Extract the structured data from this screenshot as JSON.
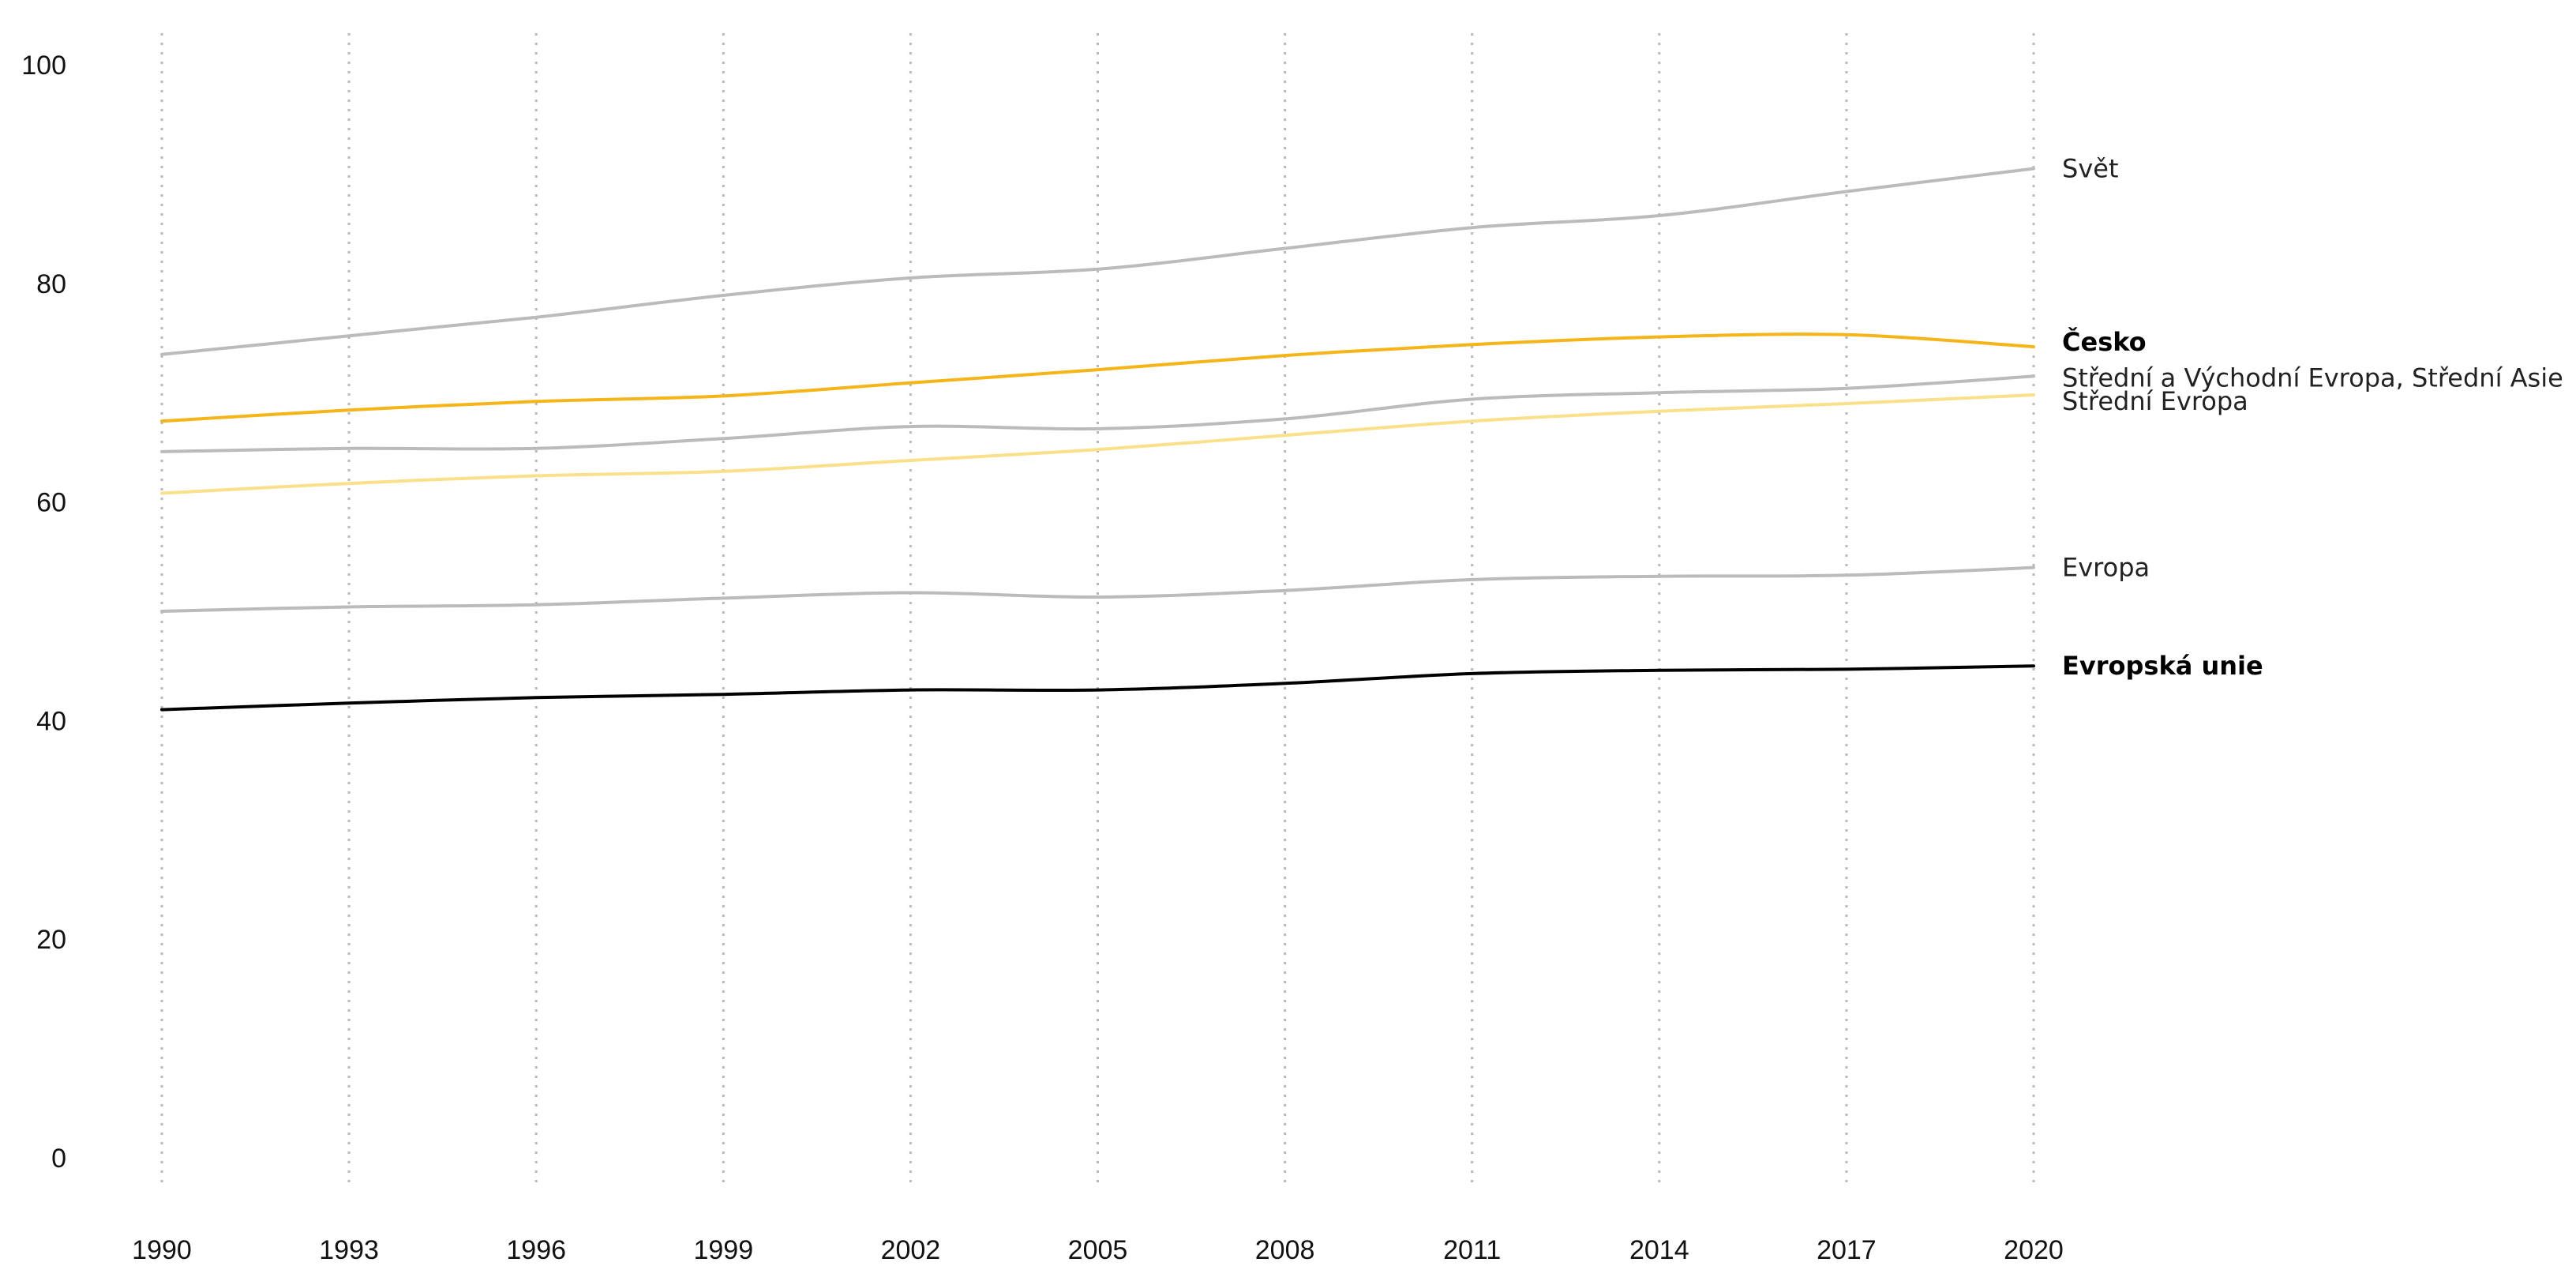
{
  "chart_data": {
    "type": "line",
    "title": "",
    "xlabel": "",
    "ylabel": "",
    "xlim": [
      1990,
      2020
    ],
    "ylim": [
      0,
      100
    ],
    "x_ticks": [
      1990,
      1993,
      1996,
      1999,
      2002,
      2005,
      2008,
      2011,
      2014,
      2017,
      2020
    ],
    "y_ticks": [
      0,
      20,
      40,
      60,
      80,
      100
    ],
    "grid": "vertical-dotted",
    "legend": "direct-labels-right",
    "x": [
      1990,
      1993,
      1996,
      1999,
      2002,
      2005,
      2008,
      2011,
      2014,
      2017,
      2020
    ],
    "series": [
      {
        "name": "Svět",
        "color": "#bbbbbb",
        "bold": false,
        "values": [
          73.5,
          75.2,
          76.9,
          78.9,
          80.5,
          81.3,
          83.2,
          85.1,
          86.2,
          88.4,
          90.5
        ]
      },
      {
        "name": "Česko",
        "color": "#f5b418",
        "bold": true,
        "values": [
          67.4,
          68.4,
          69.2,
          69.7,
          70.9,
          72.1,
          73.4,
          74.4,
          75.1,
          75.3,
          74.2
        ]
      },
      {
        "name": "Střední a Východní Evropa, Střední Asie",
        "color": "#bbbbbb",
        "bold": false,
        "values": [
          64.6,
          64.9,
          64.9,
          65.8,
          66.9,
          66.7,
          67.6,
          69.4,
          70.0,
          70.4,
          71.5
        ]
      },
      {
        "name": "Střední Evropa",
        "color": "#fae08a",
        "bold": false,
        "values": [
          60.8,
          61.7,
          62.4,
          62.8,
          63.8,
          64.8,
          66.1,
          67.4,
          68.3,
          69.0,
          69.8
        ]
      },
      {
        "name": "Evropa",
        "color": "#bbbbbb",
        "bold": false,
        "values": [
          50.0,
          50.4,
          50.6,
          51.2,
          51.7,
          51.3,
          51.9,
          52.9,
          53.2,
          53.3,
          54.0
        ]
      },
      {
        "name": "Evropská unie",
        "color": "#000000",
        "bold": true,
        "values": [
          41.0,
          41.6,
          42.1,
          42.4,
          42.8,
          42.8,
          43.4,
          44.3,
          44.6,
          44.7,
          45.0
        ]
      }
    ]
  }
}
